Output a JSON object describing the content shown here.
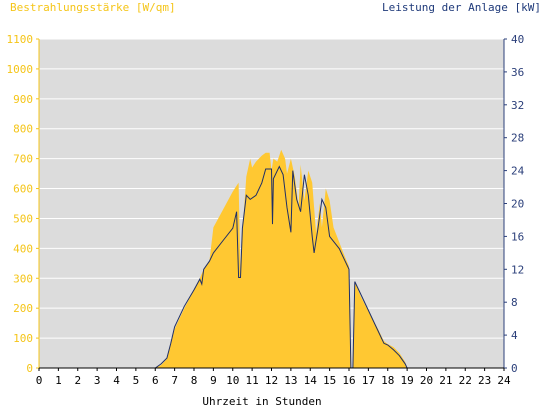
{
  "chart_data": {
    "type": "area",
    "left_axis_title": "Bestrahlungsstärke [W/qm]",
    "right_axis_title": "Leistung der Anlage [kW]",
    "xlabel": "Uhrzeit in Stunden",
    "xlim": [
      0,
      24
    ],
    "ylim_left": [
      0,
      1100
    ],
    "ylim_right": [
      0,
      40
    ],
    "x_ticks": [
      "0",
      "1",
      "2",
      "3",
      "4",
      "5",
      "6",
      "7",
      "8",
      "9",
      "10",
      "11",
      "12",
      "13",
      "14",
      "15",
      "16",
      "17",
      "18",
      "19",
      "20",
      "21",
      "22",
      "23",
      "24"
    ],
    "left_ticks": [
      "0",
      "100",
      "200",
      "300",
      "400",
      "500",
      "600",
      "700",
      "800",
      "900",
      "1000",
      "1100"
    ],
    "right_ticks": [
      "0",
      "4",
      "8",
      "12",
      "16",
      "20",
      "24",
      "28",
      "32",
      "36",
      "40"
    ],
    "grid": true,
    "colors": {
      "irradiance_fill": "#ffc832",
      "power_line": "#1f2f66",
      "plot_background": "#dcdcdc",
      "left_axis": "#f5c518",
      "right_axis": "#2b3f7a"
    },
    "series": [
      {
        "name": "Bestrahlungsstärke [W/qm]",
        "axis": "left",
        "points": [
          [
            0,
            0
          ],
          [
            6.0,
            0
          ],
          [
            6.3,
            10
          ],
          [
            6.6,
            30
          ],
          [
            6.8,
            80
          ],
          [
            7.0,
            130
          ],
          [
            7.5,
            200
          ],
          [
            8.0,
            260
          ],
          [
            8.3,
            300
          ],
          [
            8.5,
            330
          ],
          [
            8.8,
            360
          ],
          [
            9.0,
            470
          ],
          [
            9.5,
            530
          ],
          [
            10.0,
            590
          ],
          [
            10.3,
            620
          ],
          [
            10.4,
            310
          ],
          [
            10.5,
            450
          ],
          [
            10.7,
            640
          ],
          [
            10.9,
            700
          ],
          [
            11.0,
            670
          ],
          [
            11.2,
            690
          ],
          [
            11.5,
            710
          ],
          [
            11.7,
            720
          ],
          [
            11.9,
            720
          ],
          [
            12.0,
            660
          ],
          [
            12.1,
            700
          ],
          [
            12.3,
            690
          ],
          [
            12.5,
            730
          ],
          [
            12.7,
            700
          ],
          [
            12.8,
            650
          ],
          [
            13.0,
            700
          ],
          [
            13.2,
            640
          ],
          [
            13.4,
            540
          ],
          [
            13.5,
            680
          ],
          [
            13.7,
            560
          ],
          [
            13.9,
            660
          ],
          [
            14.1,
            620
          ],
          [
            14.3,
            450
          ],
          [
            14.5,
            550
          ],
          [
            14.6,
            470
          ],
          [
            14.8,
            600
          ],
          [
            15.0,
            560
          ],
          [
            15.2,
            470
          ],
          [
            15.5,
            420
          ],
          [
            15.8,
            370
          ],
          [
            16.0,
            340
          ],
          [
            16.1,
            0
          ],
          [
            16.2,
            0
          ],
          [
            16.3,
            290
          ],
          [
            16.6,
            240
          ],
          [
            17.0,
            190
          ],
          [
            17.5,
            130
          ],
          [
            17.8,
            90
          ],
          [
            18.0,
            80
          ],
          [
            18.3,
            70
          ],
          [
            18.6,
            50
          ],
          [
            18.9,
            20
          ],
          [
            19.0,
            0
          ],
          [
            24,
            0
          ]
        ]
      },
      {
        "name": "Leistung der Anlage [kW]",
        "axis": "right",
        "points": [
          [
            0,
            0
          ],
          [
            6.0,
            0
          ],
          [
            6.3,
            0.5
          ],
          [
            6.6,
            1.2
          ],
          [
            6.8,
            3
          ],
          [
            7.0,
            5
          ],
          [
            7.5,
            7.5
          ],
          [
            8.0,
            9.5
          ],
          [
            8.3,
            10.8
          ],
          [
            8.4,
            10.2
          ],
          [
            8.5,
            12
          ],
          [
            8.8,
            13
          ],
          [
            9.0,
            14
          ],
          [
            9.5,
            15.5
          ],
          [
            10.0,
            17
          ],
          [
            10.2,
            19
          ],
          [
            10.3,
            11
          ],
          [
            10.4,
            11
          ],
          [
            10.5,
            17
          ],
          [
            10.7,
            21
          ],
          [
            10.9,
            20.5
          ],
          [
            11.2,
            21
          ],
          [
            11.5,
            22.5
          ],
          [
            11.7,
            24.2
          ],
          [
            12.0,
            24.2
          ],
          [
            12.05,
            17.5
          ],
          [
            12.1,
            23
          ],
          [
            12.4,
            24.5
          ],
          [
            12.6,
            23.5
          ],
          [
            12.8,
            19.5
          ],
          [
            13.0,
            16.5
          ],
          [
            13.1,
            24
          ],
          [
            13.3,
            20.5
          ],
          [
            13.5,
            19
          ],
          [
            13.7,
            23.5
          ],
          [
            13.9,
            21
          ],
          [
            14.1,
            16
          ],
          [
            14.2,
            14
          ],
          [
            14.4,
            17
          ],
          [
            14.6,
            20.5
          ],
          [
            14.8,
            19.5
          ],
          [
            15.0,
            16
          ],
          [
            15.5,
            14.5
          ],
          [
            15.8,
            13
          ],
          [
            16.0,
            12
          ],
          [
            16.1,
            0
          ],
          [
            16.2,
            0
          ],
          [
            16.3,
            10.5
          ],
          [
            16.5,
            9.5
          ],
          [
            17.0,
            7
          ],
          [
            17.5,
            4.5
          ],
          [
            17.8,
            3
          ],
          [
            18.0,
            2.8
          ],
          [
            18.3,
            2.2
          ],
          [
            18.6,
            1.5
          ],
          [
            18.9,
            0.5
          ],
          [
            19.0,
            0
          ],
          [
            24,
            0
          ]
        ]
      }
    ]
  }
}
